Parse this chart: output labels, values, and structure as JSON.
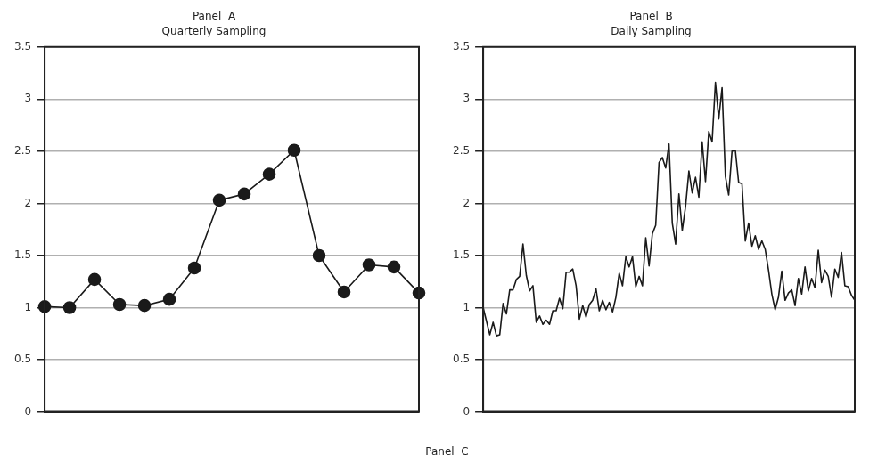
{
  "chart_data": [
    {
      "type": "line",
      "title": "Panel  A",
      "subtitle": "Quarterly Sampling",
      "marker": "circle",
      "grid": "y",
      "legend": false,
      "categories": [
        null,
        null,
        null,
        null,
        null,
        null,
        null,
        null,
        null,
        null,
        null,
        null,
        null,
        null,
        null,
        null
      ],
      "ylim": [
        0,
        3.5
      ],
      "yticks": [
        0,
        0.5,
        1,
        1.5,
        2,
        2.5,
        3,
        3.5
      ],
      "series": [
        {
          "color": "#1a1a1a",
          "values": [
            1.01,
            1.0,
            1.27,
            1.03,
            1.02,
            1.08,
            1.38,
            2.03,
            2.09,
            2.28,
            2.51,
            1.5,
            1.15,
            1.41,
            1.39,
            1.14
          ]
        }
      ]
    },
    {
      "type": "line",
      "title": "Panel  B",
      "subtitle": "Daily Sampling",
      "marker": "none",
      "grid": "y",
      "legend": false,
      "categories": [
        null,
        null,
        null,
        null,
        null,
        null,
        null,
        null,
        null,
        null,
        null,
        null,
        null,
        null,
        null,
        null,
        null,
        null,
        null,
        null,
        null,
        null,
        null,
        null,
        null,
        null,
        null,
        null,
        null,
        null,
        null,
        null,
        null,
        null,
        null,
        null,
        null,
        null,
        null,
        null,
        null,
        null,
        null,
        null,
        null,
        null,
        null,
        null,
        null,
        null,
        null,
        null,
        null,
        null,
        null,
        null,
        null,
        null,
        null,
        null,
        null,
        null,
        null,
        null,
        null,
        null,
        null,
        null,
        null,
        null,
        null,
        null,
        null,
        null,
        null,
        null,
        null,
        null,
        null,
        null,
        null,
        null,
        null,
        null,
        null,
        null,
        null,
        null,
        null,
        null,
        null,
        null,
        null,
        null,
        null,
        null,
        null,
        null,
        null,
        null,
        null,
        null,
        null,
        null,
        null,
        null,
        null,
        null,
        null,
        null,
        null,
        null,
        null
      ],
      "ylim": [
        0,
        3.5
      ],
      "yticks": [
        0,
        0.5,
        1,
        1.5,
        2,
        2.5,
        3,
        3.5
      ],
      "series": [
        {
          "color": "#1a1a1a",
          "values": [
            1.0,
            0.87,
            0.74,
            0.86,
            0.73,
            0.74,
            1.04,
            0.94,
            1.17,
            1.17,
            1.27,
            1.3,
            1.61,
            1.31,
            1.16,
            1.21,
            0.86,
            0.92,
            0.84,
            0.88,
            0.84,
            0.97,
            0.97,
            1.09,
            0.99,
            1.34,
            1.34,
            1.37,
            1.21,
            0.89,
            1.02,
            0.91,
            1.03,
            1.07,
            1.18,
            0.97,
            1.07,
            0.98,
            1.05,
            0.96,
            1.1,
            1.33,
            1.21,
            1.49,
            1.39,
            1.49,
            1.2,
            1.3,
            1.21,
            1.67,
            1.4,
            1.71,
            1.79,
            2.39,
            2.44,
            2.34,
            2.57,
            1.81,
            1.61,
            2.09,
            1.74,
            1.97,
            2.31,
            2.1,
            2.25,
            2.06,
            2.59,
            2.21,
            2.69,
            2.59,
            3.16,
            2.81,
            3.11,
            2.26,
            2.08,
            2.5,
            2.51,
            2.2,
            2.19,
            1.64,
            1.81,
            1.59,
            1.69,
            1.56,
            1.64,
            1.56,
            1.36,
            1.13,
            0.98,
            1.1,
            1.35,
            1.07,
            1.14,
            1.17,
            1.02,
            1.28,
            1.13,
            1.39,
            1.16,
            1.28,
            1.19,
            1.55,
            1.24,
            1.36,
            1.3,
            1.1,
            1.37,
            1.29,
            1.53,
            1.21,
            1.2,
            1.12,
            1.07
          ]
        }
      ]
    },
    {
      "type": "other",
      "title": "Panel  C"
    }
  ]
}
